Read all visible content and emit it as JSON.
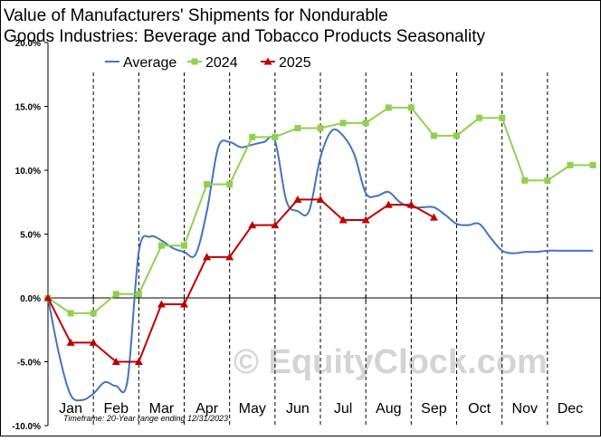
{
  "chart_data": {
    "type": "line",
    "title_lines": [
      "Value of Manufacturers'  Shipments  for Nondurable",
      "Goods Industries: Beverage  and Tobacco Products Seasonality"
    ],
    "y_tick_labels": [
      "20.0%",
      "15.0%",
      "10.0%",
      "5.0%",
      "0.0%",
      "-5.0%",
      "-10.0%"
    ],
    "y_ticks": [
      20,
      15,
      10,
      5,
      0,
      -5,
      -10
    ],
    "ylim": [
      -10,
      20
    ],
    "xlim": [
      0,
      12
    ],
    "month_labels": [
      "Jan",
      "Feb",
      "Mar",
      "Apr",
      "May",
      "Jun",
      "Jul",
      "Aug",
      "Sep",
      "Oct",
      "Nov",
      "Dec"
    ],
    "grid": {
      "vertical_dashed": true,
      "horizontal": false
    },
    "legend_position": "top",
    "series": [
      {
        "name": "Average",
        "color": "#4472c4",
        "marker": "none",
        "x": [
          0,
          0.25,
          0.5,
          0.75,
          1.0,
          1.25,
          1.5,
          1.75,
          2.0,
          2.25,
          2.5,
          2.75,
          3.0,
          3.25,
          3.5,
          3.75,
          4.0,
          4.25,
          4.5,
          4.75,
          5.0,
          5.25,
          5.5,
          5.75,
          6.0,
          6.25,
          6.5,
          6.75,
          7.0,
          7.25,
          7.5,
          7.75,
          8.0,
          8.25,
          8.5,
          8.75,
          9.0,
          9.25,
          9.5,
          9.75,
          10.0,
          10.25,
          10.5,
          10.75,
          11.0,
          11.25,
          11.5,
          11.75,
          12.0
        ],
        "values": [
          0.0,
          -4.5,
          -7.6,
          -8.0,
          -7.5,
          -6.6,
          -6.9,
          -6.5,
          3.6,
          4.8,
          4.5,
          3.9,
          3.6,
          3.4,
          6.8,
          11.8,
          12.2,
          11.8,
          12.0,
          12.2,
          12.3,
          7.6,
          6.8,
          6.8,
          11.0,
          13.1,
          12.7,
          11.2,
          8.2,
          8.0,
          8.3,
          7.5,
          7.1,
          7.1,
          7.1,
          6.5,
          5.8,
          5.7,
          5.8,
          4.7,
          3.7,
          3.5,
          3.6,
          3.6,
          3.7,
          3.7,
          3.7,
          3.7,
          3.7
        ]
      },
      {
        "name": "2024",
        "color": "#92d050",
        "marker": "square",
        "x": [
          0,
          0.5,
          1.0,
          1.5,
          2.0,
          2.5,
          3.0,
          3.5,
          4.0,
          4.5,
          5.0,
          5.5,
          6.0,
          6.5,
          7.0,
          7.5,
          8.0,
          8.5,
          9.0,
          9.5,
          10.0,
          10.5,
          11.0,
          11.5,
          12.0
        ],
        "values": [
          0.0,
          -1.2,
          -1.2,
          0.3,
          0.3,
          4.1,
          4.1,
          8.9,
          8.9,
          12.6,
          12.6,
          13.3,
          13.3,
          13.7,
          13.7,
          14.9,
          14.9,
          12.7,
          12.7,
          14.1,
          14.1,
          9.2,
          9.2,
          10.4,
          10.4
        ]
      },
      {
        "name": "2025",
        "color": "#c00000",
        "marker": "triangle",
        "x": [
          0,
          0.5,
          1.0,
          1.5,
          2.0,
          2.5,
          3.0,
          3.5,
          4.0,
          4.5,
          5.0,
          5.5,
          6.0,
          6.5,
          7.0,
          7.5,
          8.0,
          8.5
        ],
        "values": [
          0.0,
          -3.5,
          -3.5,
          -5.0,
          -5.0,
          -0.5,
          -0.5,
          3.2,
          3.2,
          5.7,
          5.7,
          7.7,
          7.7,
          6.1,
          6.1,
          7.3,
          7.3,
          6.3
        ]
      }
    ],
    "footnote": "Timeframe: 20-Year range ending 12/31/2023",
    "watermark": "© EquityClock.com"
  }
}
